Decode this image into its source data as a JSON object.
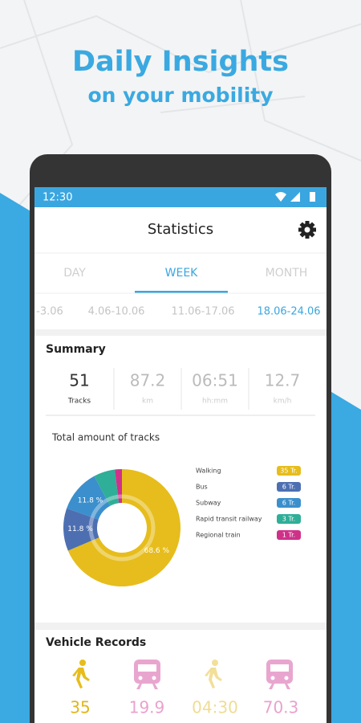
{
  "promo": {
    "title": "Daily Insights",
    "subtitle": "on your mobility"
  },
  "status_bar": {
    "time": "12:30"
  },
  "app_bar": {
    "title": "Statistics"
  },
  "tabs": [
    "DAY",
    "WEEK",
    "MONTH"
  ],
  "dates": [
    "-3.06",
    "4.06-10.06",
    "11.06-17.06",
    "18.06-24.06"
  ],
  "summary": {
    "title": "Summary",
    "stats": [
      {
        "value": 51,
        "label": "Tracks"
      },
      {
        "value": 87.2,
        "label": "km"
      },
      {
        "value": "06:51",
        "label": "hh:mm"
      },
      {
        "value": 12.7,
        "label": "km/h"
      }
    ]
  },
  "donut": {
    "title": "Total amount of tracks",
    "items": [
      {
        "name": "Walking",
        "color": "#e6bd1c",
        "value": 35,
        "value_label": "35 Tr.",
        "percent_label": "68.6 %"
      },
      {
        "name": "Bus",
        "color": "#4d6fb2",
        "value": 6,
        "value_label": "6 Tr.",
        "percent_label": "11.8 %"
      },
      {
        "name": "Subway",
        "color": "#3b8fcc",
        "value": 6,
        "value_label": "6 Tr.",
        "percent_label": "11.8 %"
      },
      {
        "name": "Rapid transit railway",
        "color": "#2fae98",
        "value": 3,
        "value_label": "3 Tr."
      },
      {
        "name": "Regional train",
        "color": "#cf3189",
        "value": 1,
        "value_label": "1 Tr."
      }
    ]
  },
  "vehicle_records": {
    "title": "Vehicle Records",
    "values": [
      35,
      19.9,
      "04:30",
      70.3
    ]
  }
}
